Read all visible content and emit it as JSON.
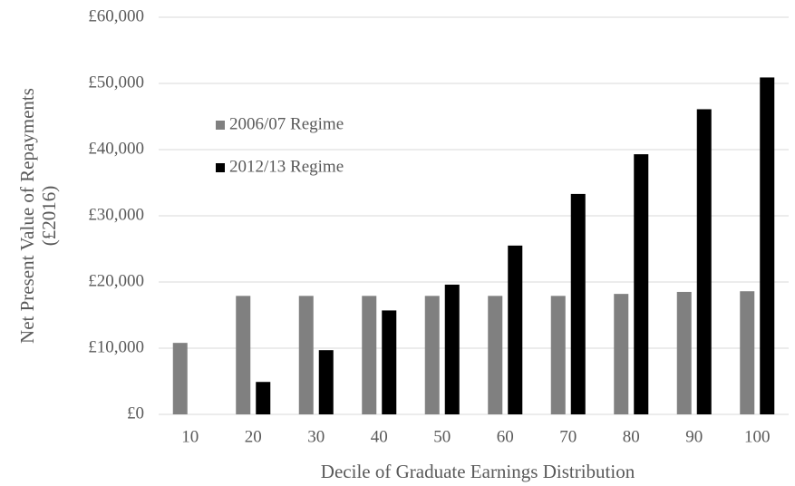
{
  "chart_data": {
    "type": "bar",
    "ylabel": [
      "Net Present Value of Repayments",
      "(£2016)"
    ],
    "xlabel": "Decile of Graduate Earnings Distribution",
    "categories": [
      "10",
      "20",
      "30",
      "40",
      "50",
      "60",
      "70",
      "80",
      "90",
      "100"
    ],
    "series": [
      {
        "name": "2006/07 Regime",
        "color": "#808080",
        "values": [
          10800,
          17900,
          17900,
          17900,
          17900,
          17900,
          17900,
          18200,
          18500,
          18600
        ]
      },
      {
        "name": "2012/13 Regime",
        "color": "#000000",
        "values": [
          0,
          4900,
          9700,
          15700,
          19600,
          25500,
          33300,
          39300,
          46100,
          50900
        ]
      }
    ],
    "ylim": [
      0,
      60000
    ],
    "yticks": [
      {
        "value": 0,
        "label": "£0"
      },
      {
        "value": 10000,
        "label": "£10,000"
      },
      {
        "value": 20000,
        "label": "£20,000"
      },
      {
        "value": 30000,
        "label": "£30,000"
      },
      {
        "value": 40000,
        "label": "£40,000"
      },
      {
        "value": 50000,
        "label": "£50,000"
      },
      {
        "value": 60000,
        "label": "£60,000"
      }
    ],
    "grid": true
  }
}
